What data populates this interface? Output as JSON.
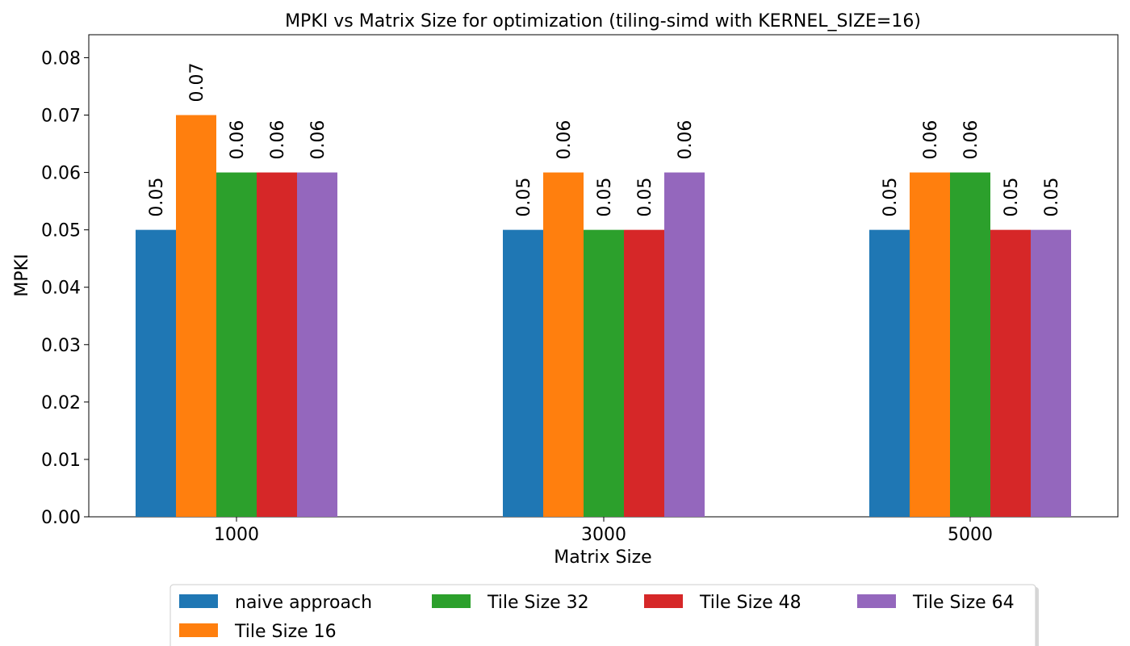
{
  "chart_data": {
    "type": "bar",
    "title": "MPKI vs Matrix Size for optimization (tiling-simd with KERNEL_SIZE=16)",
    "xlabel": "Matrix Size",
    "ylabel": "MPKI",
    "categories": [
      "1000",
      "3000",
      "5000"
    ],
    "ylim": [
      0,
      0.084
    ],
    "yticks": [
      "0.00",
      "0.01",
      "0.02",
      "0.03",
      "0.04",
      "0.05",
      "0.06",
      "0.07",
      "0.08"
    ],
    "grid": false,
    "legend_position": "bottom-center",
    "series": [
      {
        "name": "naive approach",
        "color": "#1f77b4",
        "values": [
          0.05,
          0.05,
          0.05
        ],
        "labels": [
          "0.05",
          "0.05",
          "0.05"
        ]
      },
      {
        "name": "Tile Size 16",
        "color": "#ff7f0e",
        "values": [
          0.07,
          0.06,
          0.06
        ],
        "labels": [
          "0.07",
          "0.06",
          "0.06"
        ]
      },
      {
        "name": "Tile Size 32",
        "color": "#2ca02c",
        "values": [
          0.06,
          0.05,
          0.06
        ],
        "labels": [
          "0.06",
          "0.05",
          "0.06"
        ]
      },
      {
        "name": "Tile Size 48",
        "color": "#d62728",
        "values": [
          0.06,
          0.05,
          0.05
        ],
        "labels": [
          "0.06",
          "0.05",
          "0.05"
        ]
      },
      {
        "name": "Tile Size 64",
        "color": "#9467bd",
        "values": [
          0.06,
          0.06,
          0.05
        ],
        "labels": [
          "0.06",
          "0.06",
          "0.05"
        ]
      }
    ]
  }
}
